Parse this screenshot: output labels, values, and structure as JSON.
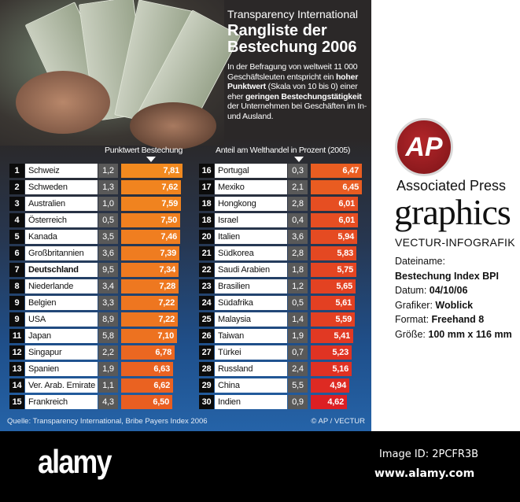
{
  "header": {
    "subtitle": "Transparency International",
    "title_line1": "Rangliste der",
    "title_line2": "Bestechung 2006",
    "desc": [
      {
        "t": "In der Befragung von weltweit 11 000 Geschäftsleuten entspricht ein ",
        "b": false
      },
      {
        "t": "hoher Punktwert",
        "b": true
      },
      {
        "t": " (Skala von 10 bis 0) einer eher ",
        "b": false
      },
      {
        "t": "geringen Bestechungstätigkeit",
        "b": true
      },
      {
        "t": " der Unternehmen bei Geschäften im In- und Ausland.",
        "b": false
      }
    ]
  },
  "chart_data": {
    "type": "bar",
    "orientation": "horizontal",
    "title": "Rangliste der Bestechung 2006",
    "value_label": "Punktwert Bestechung",
    "share_label": "Anteil am Welthandel in Prozent (2005)",
    "bar_colors": {
      "high": "#f28a1f",
      "low": "#dc1f24"
    },
    "rows": [
      {
        "rank": "1",
        "country": "Schweiz",
        "share": "1,2",
        "score": 7.81
      },
      {
        "rank": "2",
        "country": "Schweden",
        "share": "1,3",
        "score": 7.62
      },
      {
        "rank": "3",
        "country": "Australien",
        "share": "1,0",
        "score": 7.59
      },
      {
        "rank": "4",
        "country": "Österreich",
        "share": "0,5",
        "score": 7.5
      },
      {
        "rank": "5",
        "country": "Kanada",
        "share": "3,5",
        "score": 7.46
      },
      {
        "rank": "6",
        "country": "Großbritannien",
        "share": "3,6",
        "score": 7.39
      },
      {
        "rank": "7",
        "country": "Deutschland",
        "share": "9,5",
        "score": 7.34,
        "bold": true
      },
      {
        "rank": "8",
        "country": "Niederlande",
        "share": "3,4",
        "score": 7.28
      },
      {
        "rank": "9",
        "country": "Belgien",
        "share": "3,3",
        "score": 7.22
      },
      {
        "rank": "9",
        "country": "USA",
        "share": "8,9",
        "score": 7.22
      },
      {
        "rank": "11",
        "country": "Japan",
        "share": "5,8",
        "score": 7.1
      },
      {
        "rank": "12",
        "country": "Singapur",
        "share": "2,2",
        "score": 6.78
      },
      {
        "rank": "13",
        "country": "Spanien",
        "share": "1,9",
        "score": 6.63
      },
      {
        "rank": "14",
        "country": "Ver. Arab. Emirate",
        "share": "1,1",
        "score": 6.62
      },
      {
        "rank": "15",
        "country": "Frankreich",
        "share": "4,3",
        "score": 6.5
      },
      {
        "rank": "16",
        "country": "Portugal",
        "share": "0,3",
        "score": 6.47
      },
      {
        "rank": "17",
        "country": "Mexiko",
        "share": "2,1",
        "score": 6.45
      },
      {
        "rank": "18",
        "country": "Hongkong",
        "share": "2,8",
        "score": 6.01
      },
      {
        "rank": "18",
        "country": "Israel",
        "share": "0,4",
        "score": 6.01
      },
      {
        "rank": "20",
        "country": "Italien",
        "share": "3,6",
        "score": 5.94
      },
      {
        "rank": "21",
        "country": "Südkorea",
        "share": "2,8",
        "score": 5.83
      },
      {
        "rank": "22",
        "country": "Saudi Arabien",
        "share": "1,8",
        "score": 5.75
      },
      {
        "rank": "23",
        "country": "Brasilien",
        "share": "1,2",
        "score": 5.65
      },
      {
        "rank": "24",
        "country": "Südafrika",
        "share": "0,5",
        "score": 5.61
      },
      {
        "rank": "25",
        "country": "Malaysia",
        "share": "1,4",
        "score": 5.59
      },
      {
        "rank": "26",
        "country": "Taiwan",
        "share": "1,9",
        "score": 5.41
      },
      {
        "rank": "27",
        "country": "Türkei",
        "share": "0,7",
        "score": 5.23
      },
      {
        "rank": "28",
        "country": "Russland",
        "share": "2,4",
        "score": 5.16
      },
      {
        "rank": "29",
        "country": "China",
        "share": "5,5",
        "score": 4.94
      },
      {
        "rank": "30",
        "country": "Indien",
        "share": "0,9",
        "score": 4.62
      }
    ]
  },
  "footer": {
    "source": "Quelle: Transparency International, Bribe Payers Index 2006",
    "copyright": "© AP / VECTUR"
  },
  "side": {
    "logo_text": "AP",
    "name": "Associated Press",
    "graphics": "graphics",
    "vectur": "VECTUR-INFOGRAFIK",
    "meta": [
      {
        "label": "Dateiname:",
        "value": ""
      },
      {
        "label": "",
        "value": "Bestechung Index BPI"
      },
      {
        "label": "Datum: ",
        "value": "04/10/06"
      },
      {
        "label": "Grafiker: ",
        "value": "Woblick"
      },
      {
        "label": "Format: ",
        "value": "Freehand 8"
      },
      {
        "label": "Größe: ",
        "value": "100 mm x 116 mm"
      }
    ]
  },
  "watermark": {
    "brand": "alamy",
    "image_id": "Image ID: 2PCFR3B",
    "site": "www.alamy.com"
  }
}
